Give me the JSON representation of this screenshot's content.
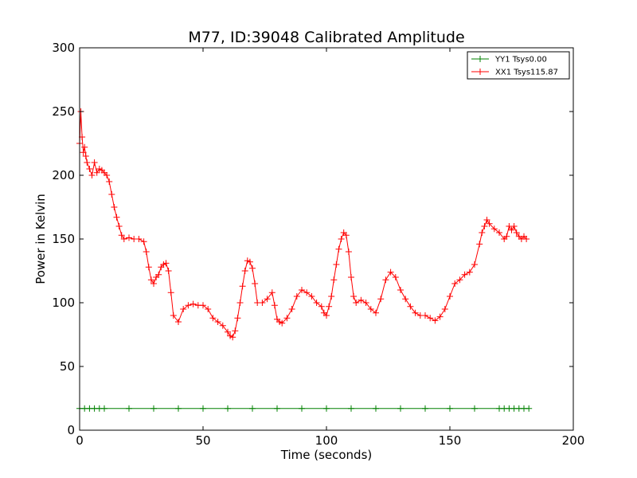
{
  "chart_data": {
    "type": "line",
    "title": "M77, ID:39048 Calibrated Amplitude",
    "xlabel": "Time (seconds)",
    "ylabel": "Power in Kelvin",
    "xlim": [
      0,
      200
    ],
    "ylim": [
      0,
      300
    ],
    "xticks": [
      "0",
      "50",
      "100",
      "150",
      "200"
    ],
    "yticks": [
      "0",
      "50",
      "100",
      "150",
      "200",
      "250",
      "300"
    ],
    "grid": false,
    "legend_position": "top-right",
    "marker": "+",
    "series": [
      {
        "name": "YY1 Tsys0.00",
        "color": "#008000",
        "x": [
          0,
          2,
          4,
          6,
          8,
          10,
          20,
          30,
          40,
          50,
          60,
          70,
          80,
          90,
          100,
          110,
          120,
          130,
          140,
          150,
          160,
          170,
          172,
          174,
          176,
          178,
          180,
          182
        ],
        "y": [
          17,
          17,
          17,
          17,
          17,
          17,
          17,
          17,
          17,
          17,
          17,
          17,
          17,
          17,
          17,
          17,
          17,
          17,
          17,
          17,
          17,
          17,
          17,
          17,
          17,
          17,
          17,
          17
        ]
      },
      {
        "name": "XX1 Tsys115.87",
        "color": "#ff0000",
        "x": [
          0,
          0.5,
          1,
          1.5,
          2,
          2.5,
          3,
          4,
          5,
          6,
          7,
          8,
          9,
          10,
          11,
          12,
          13,
          14,
          15,
          16,
          17,
          18,
          20,
          22,
          24,
          26,
          27,
          28,
          29,
          30,
          31,
          32,
          33,
          34,
          35,
          36,
          37,
          38,
          40,
          42,
          44,
          46,
          48,
          50,
          52,
          54,
          56,
          58,
          60,
          61,
          62,
          63,
          64,
          65,
          66,
          67,
          68,
          69,
          70,
          71,
          72,
          74,
          76,
          78,
          79,
          80,
          81,
          82,
          84,
          86,
          88,
          90,
          92,
          94,
          96,
          98,
          99,
          100,
          101,
          102,
          103,
          104,
          105,
          106,
          107,
          108,
          109,
          110,
          111,
          112,
          114,
          116,
          118,
          120,
          122,
          124,
          126,
          128,
          130,
          132,
          134,
          136,
          138,
          140,
          142,
          144,
          146,
          148,
          150,
          152,
          154,
          156,
          158,
          160,
          162,
          163,
          164,
          165,
          166,
          168,
          170,
          172,
          173,
          174,
          175,
          176,
          177,
          178,
          179,
          180,
          181
        ],
        "y": [
          225,
          250,
          230,
          218,
          222,
          215,
          210,
          205,
          200,
          210,
          202,
          205,
          204,
          202,
          200,
          195,
          185,
          175,
          167,
          160,
          153,
          150,
          151,
          150,
          150,
          148,
          140,
          128,
          118,
          115,
          120,
          122,
          128,
          130,
          131,
          125,
          108,
          90,
          85,
          95,
          98,
          99,
          98,
          98,
          95,
          88,
          85,
          82,
          77,
          74,
          73,
          78,
          88,
          100,
          113,
          125,
          133,
          132,
          127,
          115,
          100,
          100,
          103,
          108,
          98,
          87,
          85,
          84,
          88,
          95,
          105,
          110,
          108,
          105,
          100,
          97,
          92,
          90,
          97,
          105,
          118,
          130,
          142,
          150,
          155,
          153,
          140,
          120,
          105,
          100,
          102,
          100,
          95,
          92,
          103,
          118,
          124,
          120,
          110,
          103,
          97,
          92,
          90,
          90,
          88,
          86,
          89,
          95,
          105,
          115,
          118,
          122,
          124,
          130,
          146,
          155,
          160,
          165,
          162,
          158,
          155,
          150,
          152,
          160,
          157,
          160,
          155,
          152,
          150,
          152,
          150
        ]
      }
    ]
  }
}
